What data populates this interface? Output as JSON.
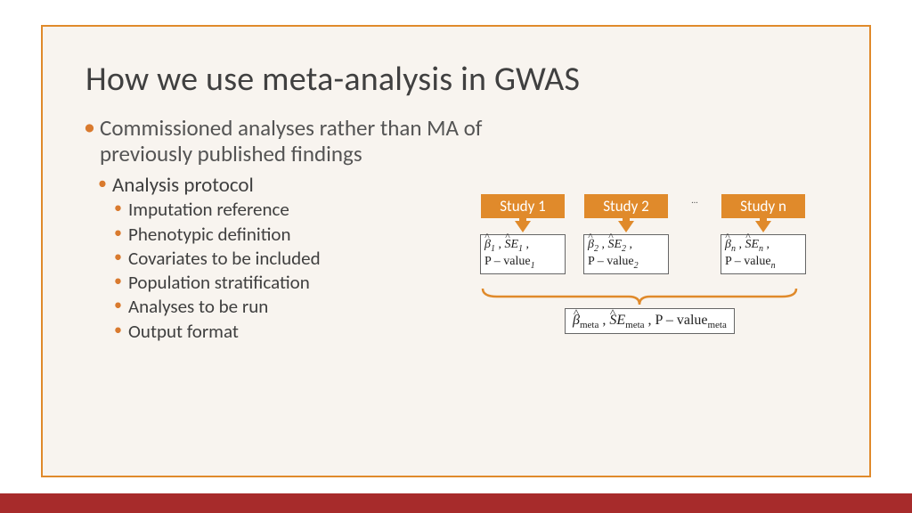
{
  "colors": {
    "slide_border": "#e08a2b",
    "slide_bg": "#f8f4ef",
    "title_text": "#404040",
    "body_text": "#3f3f3f",
    "bullet_accent": "#d97a2e",
    "footer_bar": "#a72b2b",
    "study_fill": "#e08a2b",
    "arrow_fill": "#e08a2b",
    "brace_stroke": "#e08a2b"
  },
  "title": "How we use meta-analysis in GWAS",
  "bullets": {
    "lvl1": "Commissioned analyses rather than MA of previously published findings",
    "lvl2": "Analysis protocol",
    "lvl3": [
      "Imputation reference",
      "Phenotypic definition",
      "Covariates to be included",
      "Population stratification",
      "Analyses to be run",
      "Output format"
    ]
  },
  "diagram": {
    "studies": [
      {
        "label": "Study 1",
        "sub": "1"
      },
      {
        "label": "Study 2",
        "sub": "2"
      },
      {
        "label": "Study n",
        "sub": "n"
      }
    ],
    "ellipsis": "…",
    "beta_sym": "β",
    "se_sym_s": "S",
    "se_sym_e": "E",
    "pvalue_prefix": "P – value",
    "meta_sub": "meta"
  }
}
